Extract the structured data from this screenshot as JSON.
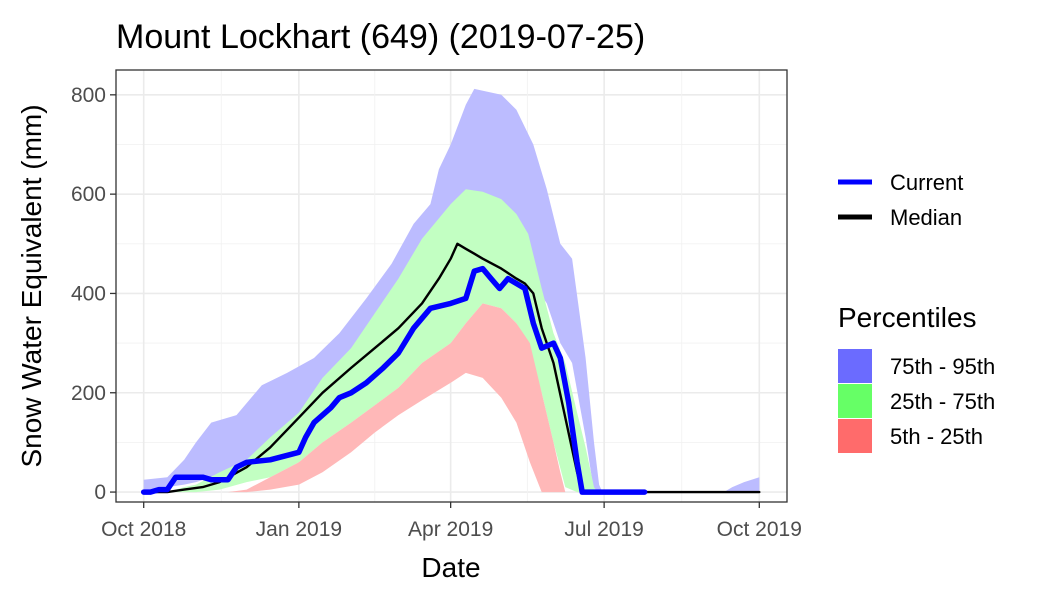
{
  "chart_data": {
    "type": "area",
    "title": "Mount Lockhart (649) (2019-07-25)",
    "xlabel": "Date",
    "ylabel": "Snow Water Equivalent (mm)",
    "x_range": [
      "2018-10-01",
      "2019-10-01"
    ],
    "ylim": [
      -20,
      850
    ],
    "x_ticks": [
      {
        "date": "2018-10-01",
        "label": "Oct 2018"
      },
      {
        "date": "2019-01-01",
        "label": "Jan 2019"
      },
      {
        "date": "2019-04-01",
        "label": "Apr 2019"
      },
      {
        "date": "2019-07-01",
        "label": "Jul 2019"
      },
      {
        "date": "2019-10-01",
        "label": "Oct 2019"
      }
    ],
    "y_ticks": [
      0,
      200,
      400,
      600,
      800
    ],
    "grid": true,
    "legend_placement": "right",
    "line_legend": [
      {
        "name": "Current",
        "color": "#0000ff"
      },
      {
        "name": "Median",
        "color": "#000000"
      }
    ],
    "percentiles_title": "Percentiles",
    "percentile_legend": [
      {
        "name": "75th - 95th",
        "color": "#6b6bff"
      },
      {
        "name": "25th - 75th",
        "color": "#66ff66"
      },
      {
        "name": "5th - 25th",
        "color": "#ff6b6b"
      }
    ],
    "bands": {
      "p75_95": {
        "fill": "#bcbcff",
        "points": [
          [
            "2018-10-01",
            0,
            25
          ],
          [
            "2018-10-15",
            10,
            30
          ],
          [
            "2018-10-25",
            15,
            65
          ],
          [
            "2018-11-01",
            20,
            100
          ],
          [
            "2018-11-10",
            30,
            140
          ],
          [
            "2018-11-25",
            40,
            155
          ],
          [
            "2018-12-10",
            60,
            215
          ],
          [
            "2018-12-25",
            90,
            240
          ],
          [
            "2019-01-10",
            140,
            270
          ],
          [
            "2019-01-25",
            175,
            320
          ],
          [
            "2019-02-10",
            215,
            390
          ],
          [
            "2019-02-25",
            255,
            460
          ],
          [
            "2019-03-10",
            290,
            540
          ],
          [
            "2019-03-20",
            340,
            580
          ],
          [
            "2019-03-25",
            380,
            650
          ],
          [
            "2019-04-01",
            410,
            700
          ],
          [
            "2019-04-10",
            450,
            780
          ],
          [
            "2019-04-15",
            460,
            812
          ],
          [
            "2019-05-01",
            450,
            800
          ],
          [
            "2019-05-10",
            450,
            770
          ],
          [
            "2019-05-20",
            420,
            700
          ],
          [
            "2019-05-28",
            380,
            610
          ],
          [
            "2019-06-05",
            300,
            500
          ],
          [
            "2019-06-12",
            260,
            470
          ],
          [
            "2019-06-20",
            110,
            270
          ],
          [
            "2019-06-25",
            0,
            100
          ],
          [
            "2019-06-28",
            0,
            15
          ],
          [
            "2019-06-30",
            0,
            0
          ],
          [
            "2019-09-10",
            0,
            0
          ],
          [
            "2019-09-15",
            0,
            10
          ],
          [
            "2019-09-22",
            0,
            20
          ],
          [
            "2019-10-01",
            0,
            30
          ]
        ]
      },
      "p25_75": {
        "fill": "#c2ffc2",
        "points": [
          [
            "2018-10-15",
            0,
            0
          ],
          [
            "2018-10-25",
            0,
            10
          ],
          [
            "2018-11-01",
            0,
            15
          ],
          [
            "2018-11-15",
            5,
            40
          ],
          [
            "2018-12-01",
            20,
            65
          ],
          [
            "2018-12-15",
            30,
            110
          ],
          [
            "2019-01-01",
            60,
            160
          ],
          [
            "2019-01-15",
            100,
            230
          ],
          [
            "2019-02-01",
            140,
            290
          ],
          [
            "2019-02-15",
            175,
            360
          ],
          [
            "2019-03-01",
            210,
            430
          ],
          [
            "2019-03-15",
            260,
            510
          ],
          [
            "2019-04-01",
            300,
            580
          ],
          [
            "2019-04-10",
            340,
            610
          ],
          [
            "2019-04-20",
            380,
            605
          ],
          [
            "2019-05-01",
            370,
            590
          ],
          [
            "2019-05-10",
            340,
            560
          ],
          [
            "2019-05-17",
            300,
            520
          ],
          [
            "2019-05-25",
            200,
            410
          ],
          [
            "2019-06-01",
            100,
            320
          ],
          [
            "2019-06-08",
            10,
            260
          ],
          [
            "2019-06-15",
            0,
            160
          ],
          [
            "2019-06-20",
            0,
            90
          ],
          [
            "2019-06-25",
            0,
            10
          ],
          [
            "2019-06-27",
            0,
            0
          ]
        ]
      },
      "p5_25": {
        "fill": "#ffb8b8",
        "points": [
          [
            "2018-11-20",
            0,
            0
          ],
          [
            "2018-12-01",
            0,
            5
          ],
          [
            "2018-12-15",
            5,
            30
          ],
          [
            "2019-01-01",
            15,
            60
          ],
          [
            "2019-01-15",
            40,
            100
          ],
          [
            "2019-02-01",
            80,
            140
          ],
          [
            "2019-02-15",
            120,
            175
          ],
          [
            "2019-03-01",
            155,
            210
          ],
          [
            "2019-03-15",
            185,
            260
          ],
          [
            "2019-04-01",
            220,
            300
          ],
          [
            "2019-04-10",
            240,
            340
          ],
          [
            "2019-04-20",
            230,
            380
          ],
          [
            "2019-05-01",
            190,
            370
          ],
          [
            "2019-05-10",
            140,
            340
          ],
          [
            "2019-05-18",
            60,
            300
          ],
          [
            "2019-05-25",
            0,
            200
          ],
          [
            "2019-06-01",
            0,
            100
          ],
          [
            "2019-06-05",
            0,
            40
          ],
          [
            "2019-06-08",
            0,
            0
          ]
        ]
      }
    },
    "series": [
      {
        "name": "Median",
        "color": "#000000",
        "points": [
          [
            "2018-10-01",
            0
          ],
          [
            "2018-10-15",
            0
          ],
          [
            "2018-10-25",
            5
          ],
          [
            "2018-11-05",
            10
          ],
          [
            "2018-11-15",
            20
          ],
          [
            "2018-12-01",
            50
          ],
          [
            "2018-12-15",
            90
          ],
          [
            "2019-01-01",
            150
          ],
          [
            "2019-01-15",
            200
          ],
          [
            "2019-02-01",
            250
          ],
          [
            "2019-02-15",
            290
          ],
          [
            "2019-03-01",
            330
          ],
          [
            "2019-03-15",
            380
          ],
          [
            "2019-03-25",
            430
          ],
          [
            "2019-04-01",
            470
          ],
          [
            "2019-04-05",
            500
          ],
          [
            "2019-04-10",
            490
          ],
          [
            "2019-04-15",
            480
          ],
          [
            "2019-04-20",
            470
          ],
          [
            "2019-05-01",
            450
          ],
          [
            "2019-05-10",
            430
          ],
          [
            "2019-05-15",
            420
          ],
          [
            "2019-05-20",
            400
          ],
          [
            "2019-05-25",
            330
          ],
          [
            "2019-06-01",
            260
          ],
          [
            "2019-06-08",
            150
          ],
          [
            "2019-06-15",
            40
          ],
          [
            "2019-06-18",
            0
          ],
          [
            "2019-10-01",
            0
          ]
        ]
      },
      {
        "name": "Current",
        "color": "#0000ff",
        "points": [
          [
            "2018-10-01",
            0
          ],
          [
            "2018-10-05",
            0
          ],
          [
            "2018-10-10",
            5
          ],
          [
            "2018-10-15",
            5
          ],
          [
            "2018-10-20",
            30
          ],
          [
            "2018-11-05",
            30
          ],
          [
            "2018-11-10",
            25
          ],
          [
            "2018-11-20",
            25
          ],
          [
            "2018-11-25",
            50
          ],
          [
            "2018-12-01",
            60
          ],
          [
            "2018-12-15",
            65
          ],
          [
            "2019-01-01",
            80
          ],
          [
            "2019-01-05",
            110
          ],
          [
            "2019-01-10",
            140
          ],
          [
            "2019-01-20",
            170
          ],
          [
            "2019-01-25",
            190
          ],
          [
            "2019-02-01",
            200
          ],
          [
            "2019-02-10",
            220
          ],
          [
            "2019-02-20",
            250
          ],
          [
            "2019-03-01",
            280
          ],
          [
            "2019-03-10",
            330
          ],
          [
            "2019-03-20",
            370
          ],
          [
            "2019-04-01",
            380
          ],
          [
            "2019-04-10",
            390
          ],
          [
            "2019-04-15",
            445
          ],
          [
            "2019-04-20",
            450
          ],
          [
            "2019-04-25",
            430
          ],
          [
            "2019-04-30",
            410
          ],
          [
            "2019-05-05",
            430
          ],
          [
            "2019-05-10",
            420
          ],
          [
            "2019-05-15",
            410
          ],
          [
            "2019-05-20",
            340
          ],
          [
            "2019-05-25",
            290
          ],
          [
            "2019-06-01",
            300
          ],
          [
            "2019-06-05",
            270
          ],
          [
            "2019-06-10",
            180
          ],
          [
            "2019-06-15",
            60
          ],
          [
            "2019-06-18",
            0
          ],
          [
            "2019-07-25",
            0
          ]
        ]
      }
    ]
  }
}
